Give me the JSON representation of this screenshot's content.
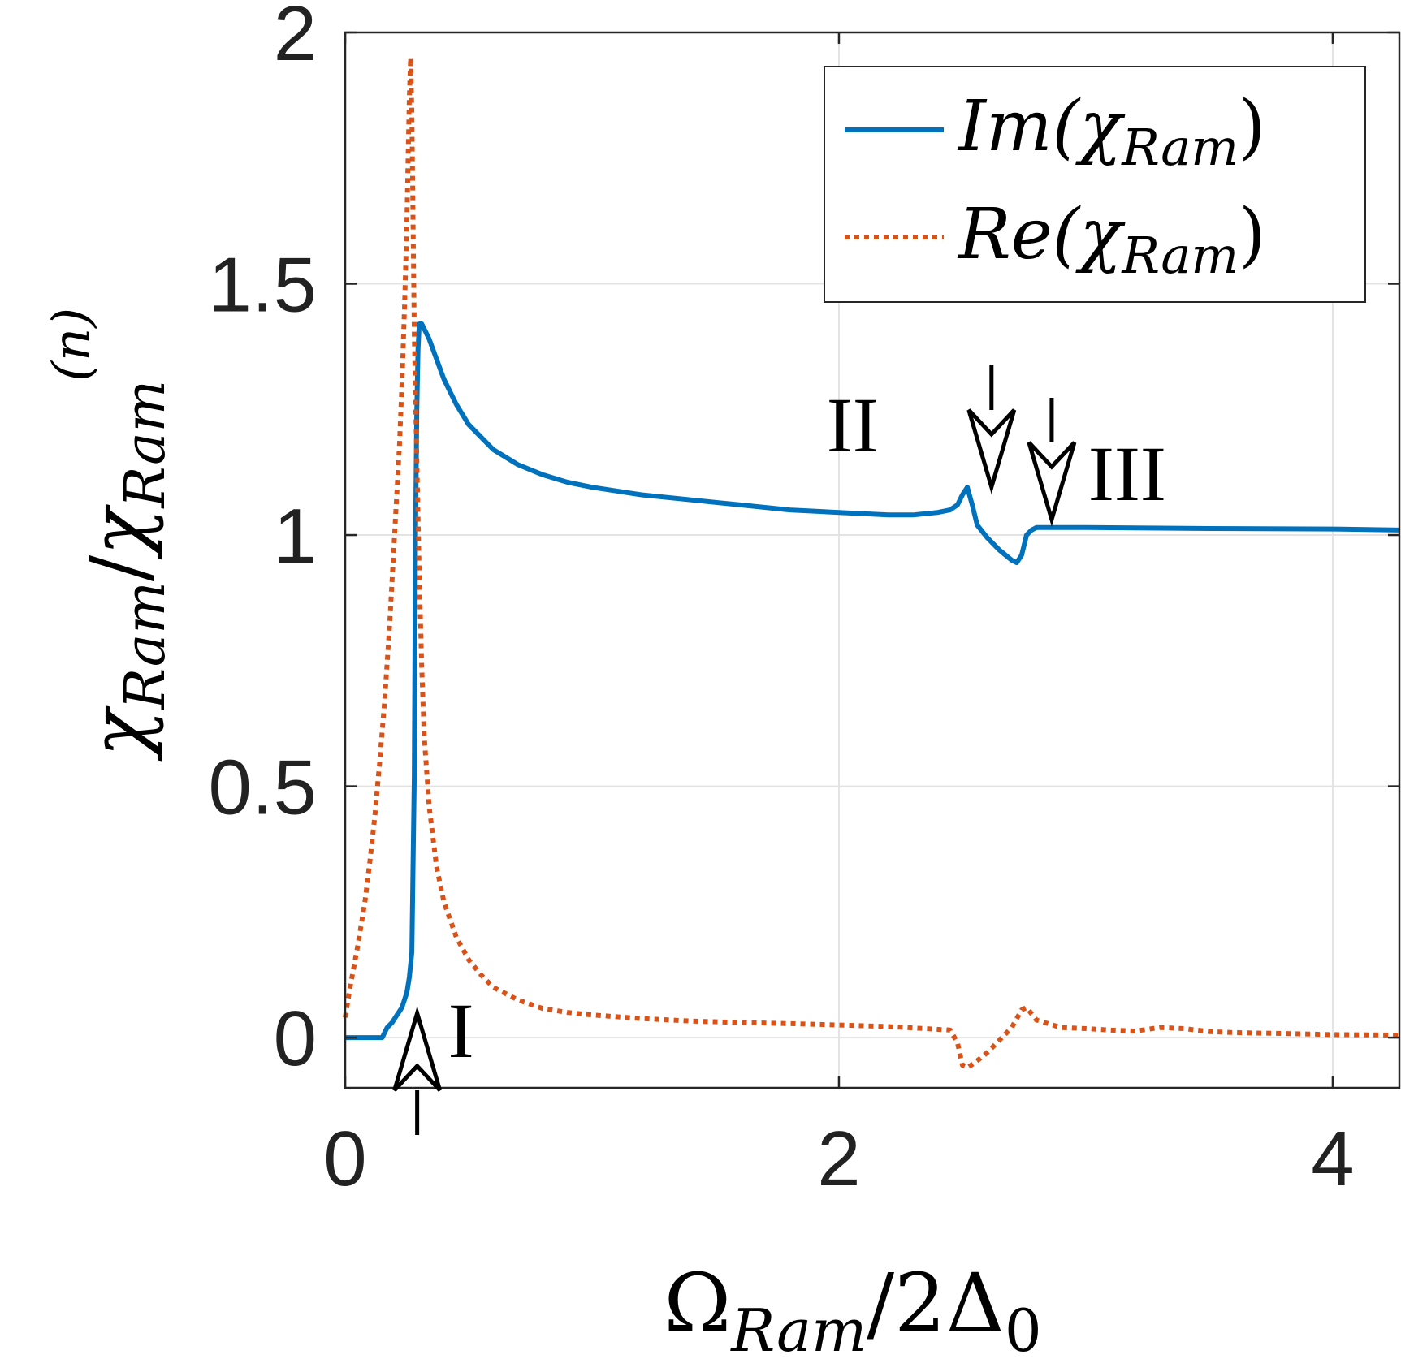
{
  "chart_data": {
    "type": "line",
    "title": "",
    "xlabel": "Ω_Ram / 2Δ₀",
    "xlabel_parts": {
      "main": "Ω",
      "sub": "Ram",
      "rest": "/2Δ",
      "sub2": "0"
    },
    "ylabel": "χ_Ram / χ_Ram^(n)",
    "ylabel_parts": {
      "main": "χ",
      "sub": "Ram",
      "slash": "/",
      "main2": "χ",
      "sup2": "(n)",
      "sub2": "Ram"
    },
    "xlim": [
      0,
      4.27
    ],
    "ylim": [
      -0.1,
      2.0
    ],
    "xticks": [
      0,
      2,
      4
    ],
    "xtick_labels": [
      "0",
      "2",
      "4"
    ],
    "yticks": [
      0,
      0.5,
      1,
      1.5,
      2
    ],
    "ytick_labels": [
      "0",
      "0.5",
      "1",
      "1.5",
      "2"
    ],
    "grid": true,
    "legend_position": "top-right",
    "series": [
      {
        "name": "Im(χRam)",
        "legend_main": "Im(χ",
        "legend_sub": "Ram",
        "legend_close": ")",
        "style": "solid",
        "color": "#0072BD",
        "x": [
          0.0,
          0.15,
          0.17,
          0.19,
          0.21,
          0.23,
          0.25,
          0.26,
          0.27,
          0.28,
          0.285,
          0.29,
          0.295,
          0.3,
          0.31,
          0.32,
          0.34,
          0.37,
          0.4,
          0.45,
          0.5,
          0.6,
          0.7,
          0.8,
          0.9,
          1.0,
          1.2,
          1.4,
          1.6,
          1.8,
          2.0,
          2.2,
          2.3,
          2.4,
          2.45,
          2.48,
          2.5,
          2.52,
          2.54,
          2.56,
          2.6,
          2.65,
          2.7,
          2.72,
          2.74,
          2.76,
          2.78,
          2.8,
          3.0,
          3.5,
          4.0,
          4.27
        ],
        "y": [
          0.0,
          0.0,
          0.02,
          0.03,
          0.045,
          0.06,
          0.09,
          0.12,
          0.17,
          0.52,
          1.0,
          1.25,
          1.37,
          1.42,
          1.42,
          1.41,
          1.39,
          1.35,
          1.31,
          1.26,
          1.22,
          1.17,
          1.14,
          1.12,
          1.105,
          1.095,
          1.08,
          1.07,
          1.06,
          1.05,
          1.045,
          1.04,
          1.04,
          1.045,
          1.05,
          1.06,
          1.08,
          1.095,
          1.06,
          1.02,
          0.995,
          0.97,
          0.95,
          0.945,
          0.96,
          1.0,
          1.01,
          1.015,
          1.015,
          1.013,
          1.012,
          1.01
        ]
      },
      {
        "name": "Re(χRam)",
        "legend_main": "Re(χ",
        "legend_sub": "Ram",
        "legend_close": ")",
        "style": "dotted",
        "color": "#D95319",
        "x": [
          0.0,
          0.02,
          0.05,
          0.08,
          0.1,
          0.12,
          0.14,
          0.16,
          0.18,
          0.2,
          0.22,
          0.23,
          0.24,
          0.25,
          0.255,
          0.26,
          0.265,
          0.27,
          0.275,
          0.28,
          0.29,
          0.3,
          0.31,
          0.32,
          0.34,
          0.37,
          0.4,
          0.45,
          0.5,
          0.55,
          0.6,
          0.7,
          0.8,
          0.9,
          1.0,
          1.2,
          1.4,
          1.6,
          1.8,
          2.0,
          2.2,
          2.35,
          2.45,
          2.48,
          2.5,
          2.52,
          2.55,
          2.6,
          2.65,
          2.7,
          2.74,
          2.76,
          2.8,
          2.9,
          3.0,
          3.1,
          3.2,
          3.3,
          3.4,
          3.5,
          3.6,
          3.8,
          4.0,
          4.27
        ],
        "y": [
          0.04,
          0.1,
          0.18,
          0.27,
          0.35,
          0.44,
          0.55,
          0.67,
          0.82,
          1.0,
          1.18,
          1.3,
          1.45,
          1.62,
          1.75,
          1.87,
          1.95,
          1.84,
          1.62,
          1.4,
          1.15,
          0.92,
          0.74,
          0.6,
          0.46,
          0.34,
          0.27,
          0.2,
          0.155,
          0.125,
          0.1,
          0.075,
          0.058,
          0.05,
          0.045,
          0.038,
          0.033,
          0.03,
          0.028,
          0.025,
          0.022,
          0.018,
          0.015,
          -0.01,
          -0.055,
          -0.06,
          -0.05,
          -0.03,
          -0.005,
          0.02,
          0.055,
          0.06,
          0.035,
          0.02,
          0.018,
          0.015,
          0.013,
          0.02,
          0.018,
          0.012,
          0.01,
          0.008,
          0.006,
          0.005
        ]
      }
    ],
    "annotations": [
      {
        "label": "I",
        "x": 0.285,
        "y": -0.0,
        "direction": "up"
      },
      {
        "label": "II",
        "x": 2.46,
        "y": 1.12,
        "direction": "down"
      },
      {
        "label": "III",
        "x": 2.74,
        "y": 1.03,
        "direction": "down"
      }
    ]
  }
}
